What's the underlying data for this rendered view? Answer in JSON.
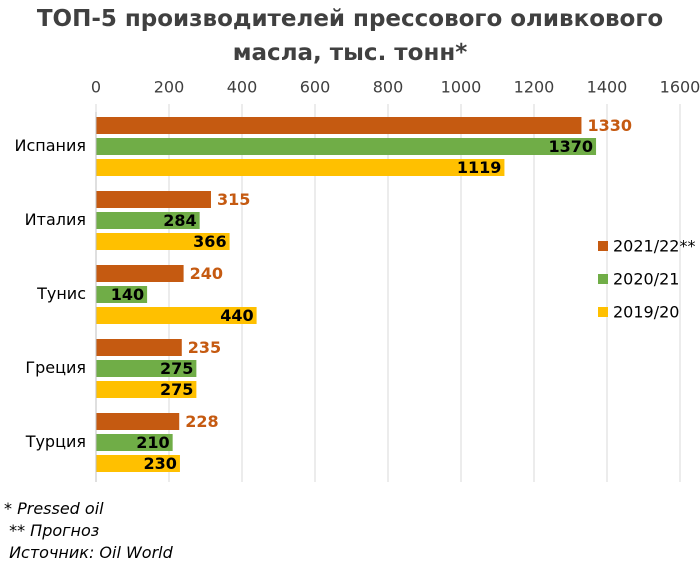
{
  "chart_data": {
    "type": "hbar",
    "title": "ТОП-5 производителей прессового оливкового масла, тыс. тонн*",
    "categories": [
      "Испания",
      "Италия",
      "Тунис",
      "Греция",
      "Турция"
    ],
    "series": [
      {
        "name": "2021/22**",
        "color": "#c55a11",
        "values": [
          1330,
          315,
          240,
          235,
          228
        ]
      },
      {
        "name": "2020/21",
        "color": "#70ad47",
        "values": [
          1370,
          284,
          140,
          275,
          210
        ]
      },
      {
        "name": "2019/20",
        "color": "#ffc000",
        "values": [
          1119,
          366,
          440,
          275,
          230
        ]
      }
    ],
    "xlim": [
      0,
      1600
    ],
    "xticks": [
      0,
      200,
      400,
      600,
      800,
      1000,
      1200,
      1400,
      1600
    ],
    "grid": true,
    "legend": "right",
    "notes": [
      "* Pressed oil",
      " ** Прогноз",
      " Источник: Oil World"
    ]
  }
}
